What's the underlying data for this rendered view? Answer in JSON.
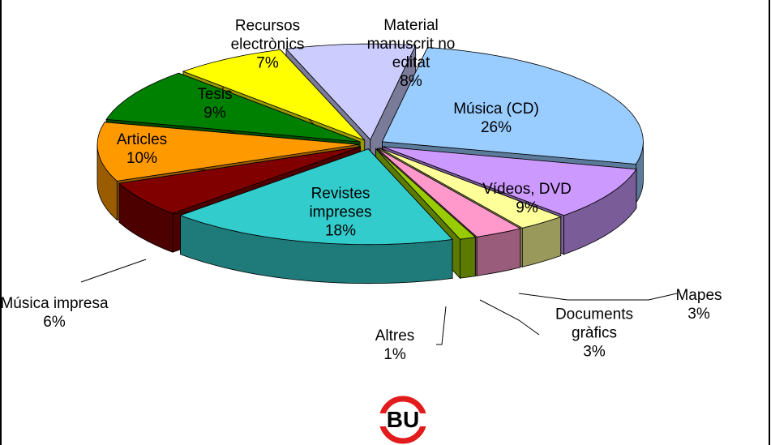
{
  "chart_data": {
    "type": "pie",
    "categories": [
      "Música (CD)",
      "Vídeos, DVD",
      "Mapes",
      "Documents gràfics",
      "Altres",
      "Revistes impreses",
      "Música impresa",
      "Articles",
      "Tesis",
      "Recursos electrònics",
      "Material manuscrit no editat"
    ],
    "values": [
      26,
      9,
      3,
      3,
      1,
      18,
      6,
      10,
      9,
      7,
      8
    ],
    "value_labels": [
      "26%",
      "9%",
      "3%",
      "3%",
      "1%",
      "18%",
      "6%",
      "10%",
      "9%",
      "7%",
      "8%"
    ],
    "colors": [
      "#99ccff",
      "#cc99ff",
      "#ffff99",
      "#ff99cc",
      "#99cc00",
      "#33cccc",
      "#800000",
      "#ff9900",
      "#008000",
      "#ffff00",
      "#ccccff"
    ],
    "logo": "BU"
  }
}
